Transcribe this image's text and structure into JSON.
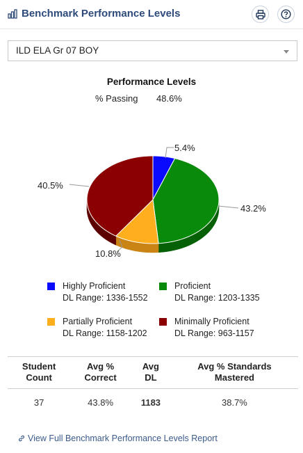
{
  "header": {
    "title": "Benchmark Performance Levels",
    "title_icon": "bar-chart-icon",
    "print_icon": "printer-icon",
    "help_icon": "help-circle-icon"
  },
  "assessment_select": {
    "value": "ILD ELA Gr 07 BOY"
  },
  "passing": {
    "label": "% Passing",
    "value": "48.6%"
  },
  "chart_data": {
    "type": "pie",
    "title": "Performance Levels",
    "slices": [
      {
        "name": "Highly Proficient",
        "value": 5.4,
        "label": "5.4%",
        "color": "#0a0aff",
        "shade": "#0606b0"
      },
      {
        "name": "Proficient",
        "value": 43.2,
        "label": "43.2%",
        "color": "#0a8a0a",
        "shade": "#066006"
      },
      {
        "name": "Partially Proficient",
        "value": 10.8,
        "label": "10.8%",
        "color": "#ffae1e",
        "shade": "#c98414"
      },
      {
        "name": "Minimally Proficient",
        "value": 40.5,
        "label": "40.5%",
        "color": "#8b0000",
        "shade": "#5c0000"
      }
    ],
    "legend_placement": "bottom"
  },
  "legend": [
    {
      "name": "Highly Proficient",
      "range_label": "DL Range:",
      "range": "1336-1552",
      "color": "#0a0aff"
    },
    {
      "name": "Proficient",
      "range_label": "DL Range:",
      "range": "1203-1335",
      "color": "#0a8a0a"
    },
    {
      "name": "Partially Proficient",
      "range_label": "DL Range:",
      "range": "1158-1202",
      "color": "#ffae1e"
    },
    {
      "name": "Minimally Proficient",
      "range_label": "DL Range:",
      "range": "963-1157",
      "color": "#8b0000"
    }
  ],
  "stats": {
    "headers": {
      "student_count": {
        "line1": "Student",
        "line2": "Count"
      },
      "avg_correct": {
        "line1": "Avg %",
        "line2": "Correct"
      },
      "avg_dl": {
        "line1": "Avg",
        "line2": "DL"
      },
      "avg_standards": {
        "line1": "Avg % Standards",
        "line2": "Mastered"
      }
    },
    "row": {
      "student_count": "37",
      "avg_correct": "43.8%",
      "avg_dl": "1183",
      "avg_standards": "38.7%"
    }
  },
  "report_link": {
    "label": "View Full Benchmark Performance Levels Report",
    "icon": "link-icon"
  }
}
